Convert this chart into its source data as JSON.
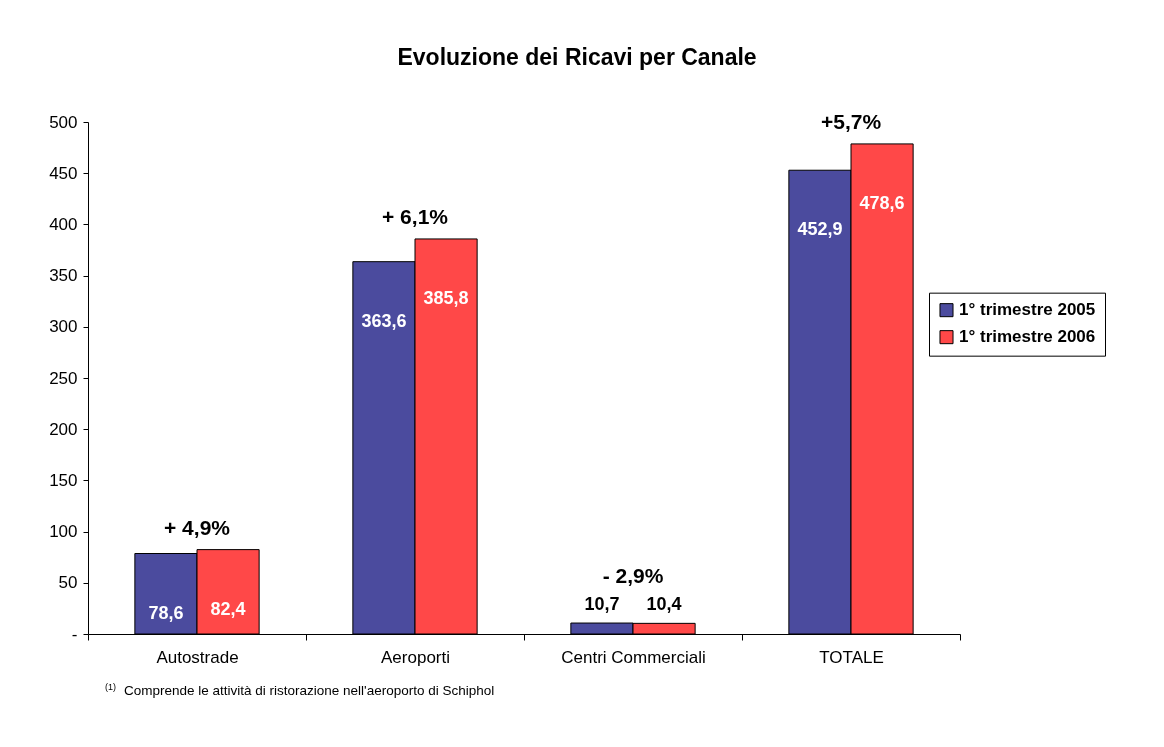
{
  "chart_data": {
    "type": "bar",
    "title": "Evoluzione dei Ricavi per Canale",
    "categories": [
      "Autostrade",
      "Aeroporti",
      "Centri Commerciali",
      "TOTALE"
    ],
    "series": [
      {
        "name": "1° trimestre 2005",
        "color": "#4b4b9e",
        "values": [
          78.6,
          363.6,
          10.7,
          452.9
        ],
        "value_labels": [
          "78,6",
          "363,6",
          "10,7",
          "452,9"
        ]
      },
      {
        "name": "1° trimestre 2006",
        "color": "#ff4848",
        "values": [
          82.4,
          385.8,
          10.4,
          478.6
        ],
        "value_labels": [
          "82,4",
          "385,8",
          "10,4",
          "478,6"
        ]
      }
    ],
    "ylim": [
      0,
      500
    ],
    "yticks": [
      {
        "value": 0,
        "label": "-"
      },
      50,
      100,
      150,
      200,
      250,
      300,
      350,
      400,
      450,
      500
    ],
    "legend": "right",
    "annotations": [
      {
        "text": "+ 4,9%",
        "x": "Autostrade",
        "y": 82.4
      },
      {
        "text": "+ 6,1%",
        "x": "Aeroporti",
        "y": 385.8
      },
      {
        "text": "- 2,9%",
        "x": "Centri Commerciali",
        "y": 10.7
      },
      {
        "text": "+5,7%",
        "x": "TOTALE",
        "y": 478.6
      },
      "$^{(1)}$ Comprende le attività di ristorazione nell'aeroporto di Schiphol"
    ]
  }
}
